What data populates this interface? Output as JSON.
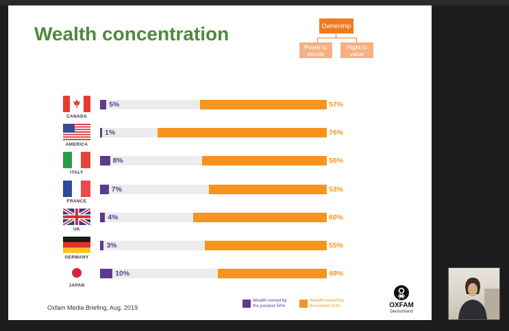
{
  "slide": {
    "title": "Wealth concentration",
    "footer": "Oxfam Media Briefing, Aug. 2019"
  },
  "org_chart": {
    "top": "Ownership",
    "left": "Power to decide",
    "right": "Right to value"
  },
  "legend": {
    "poor": "Wealth owned by the poorest 50%",
    "rich": "Wealth owned by the richest 10%",
    "poor_color": "#5d3a8c",
    "rich_color": "#f7941d"
  },
  "logo": {
    "word": "OXFAM",
    "sub": "Deutschland"
  },
  "chart_data": {
    "type": "bar",
    "categories": [
      "CANADA",
      "AMERICA",
      "ITALY",
      "FRANCE",
      "UK",
      "GERMANY",
      "JAPAN"
    ],
    "series": [
      {
        "name": "Wealth owned by the poorest 50%",
        "values": [
          5,
          1,
          8,
          7,
          4,
          3,
          10
        ]
      },
      {
        "name": "Wealth owned by the richest 10%",
        "values": [
          57,
          76,
          56,
          53,
          60,
          55,
          49
        ]
      }
    ],
    "labels_poor": [
      "5%",
      "1%",
      "8%",
      "7%",
      "4%",
      "3%",
      "10%"
    ],
    "labels_rich": [
      "57%",
      "76%",
      "56%",
      "53%",
      "60%",
      "55%",
      "49%"
    ],
    "xlim": [
      0,
      100
    ]
  },
  "flags": [
    "canada-flag",
    "usa-flag",
    "italy-flag",
    "france-flag",
    "uk-flag",
    "germany-flag",
    "japan-flag"
  ]
}
